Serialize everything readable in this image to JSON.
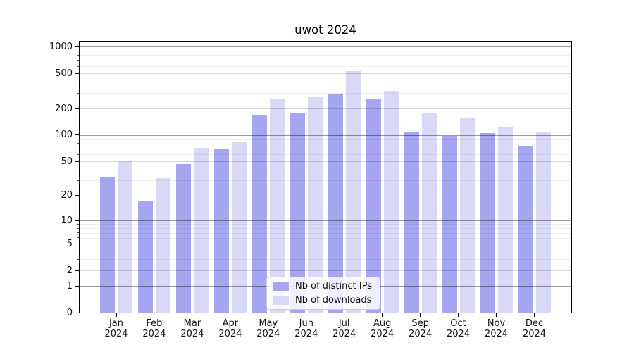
{
  "figure": {
    "background": "#ffffff",
    "spine_color": "#000000",
    "grid_major_color": "#9a9a9a",
    "grid_mid_color": "#d9d9d9",
    "grid_minor_color": "#f0f0f0"
  },
  "chart_data": {
    "type": "bar",
    "title": "uwot 2024",
    "categories": [
      "Jan 2024",
      "Feb 2024",
      "Mar 2024",
      "Apr 2024",
      "May 2024",
      "Jun 2024",
      "Jul 2024",
      "Aug 2024",
      "Sep 2024",
      "Oct 2024",
      "Nov 2024",
      "Dec 2024"
    ],
    "series": [
      {
        "name": "Nb of distinct IPs",
        "color": "#a5a5f0",
        "values": [
          33,
          17,
          47,
          70,
          167,
          177,
          295,
          255,
          110,
          97,
          106,
          75
        ]
      },
      {
        "name": "Nb of downloads",
        "color": "#d9d9f7",
        "values": [
          50,
          32,
          72,
          85,
          260,
          268,
          530,
          320,
          179,
          157,
          121,
          107
        ]
      }
    ],
    "xlabel": "",
    "ylabel": "",
    "y_scale": "log1p",
    "y_ticks": [
      0,
      1,
      2,
      5,
      10,
      20,
      50,
      100,
      200,
      500,
      1000
    ],
    "ylim": [
      0,
      1160
    ],
    "grid": "horizontal, log decades with minor lines",
    "legend_position": "lower center"
  }
}
